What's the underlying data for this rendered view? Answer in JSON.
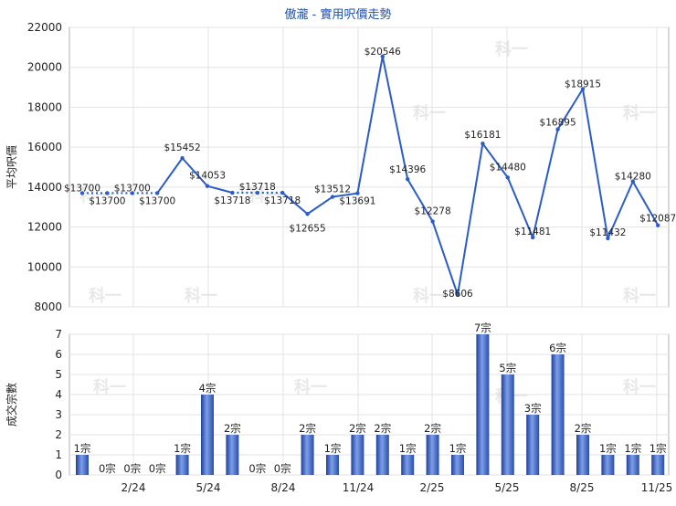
{
  "chart_data": [
    {
      "type": "line",
      "title": "傲瀧 - 實用呎價走勢",
      "ylabel": "平均呎價",
      "ylim": [
        8000,
        22000
      ],
      "yticks": [
        8000,
        10000,
        12000,
        14000,
        16000,
        18000,
        20000,
        22000
      ],
      "line_color": "#2b5cc8",
      "points": [
        {
          "value": 13700,
          "label": "$13700",
          "estimated": true
        },
        {
          "value": 13700,
          "label": "$13700",
          "estimated": true
        },
        {
          "value": 13700,
          "label": "$13700",
          "estimated": true
        },
        {
          "value": 13700,
          "label": "$13700",
          "estimated": false
        },
        {
          "value": 15452,
          "label": "$15452",
          "estimated": false
        },
        {
          "value": 14053,
          "label": "$14053",
          "estimated": false
        },
        {
          "value": 13718,
          "label": "$13718",
          "estimated": true
        },
        {
          "value": 13718,
          "label": "$13718",
          "estimated": true
        },
        {
          "value": 13718,
          "label": "$13718",
          "estimated": false
        },
        {
          "value": 12655,
          "label": "$12655",
          "estimated": false
        },
        {
          "value": 13512,
          "label": "$13512",
          "estimated": false
        },
        {
          "value": 13691,
          "label": "$13691",
          "estimated": false
        },
        {
          "value": 20546,
          "label": "$20546",
          "estimated": false
        },
        {
          "value": 14396,
          "label": "$14396",
          "estimated": false
        },
        {
          "value": 12278,
          "label": "$12278",
          "estimated": false
        },
        {
          "value": 8606,
          "label": "$8606",
          "estimated": false
        },
        {
          "value": 16181,
          "label": "$16181",
          "estimated": false
        },
        {
          "value": 14480,
          "label": "$14480",
          "estimated": false
        },
        {
          "value": 11481,
          "label": "$11481",
          "estimated": false
        },
        {
          "value": 16895,
          "label": "$16895",
          "estimated": false
        },
        {
          "value": 18915,
          "label": "$18915",
          "estimated": false
        },
        {
          "value": 11432,
          "label": "$11432",
          "estimated": false
        },
        {
          "value": 14280,
          "label": "$14280",
          "estimated": false
        },
        {
          "value": 12087,
          "label": "$12087",
          "estimated": false
        }
      ]
    },
    {
      "type": "bar",
      "ylabel": "成交宗數",
      "ylim": [
        0,
        7
      ],
      "yticks": [
        0,
        1,
        2,
        3,
        4,
        5,
        6,
        7
      ],
      "bar_color": "#3a63c4",
      "values": [
        1,
        0,
        0,
        0,
        1,
        4,
        2,
        0,
        0,
        2,
        1,
        2,
        2,
        1,
        2,
        1,
        7,
        5,
        3,
        6,
        2,
        1,
        1,
        1
      ],
      "labels": [
        "1宗",
        "0宗",
        "0宗",
        "0宗",
        "1宗",
        "4宗",
        "2宗",
        "0宗",
        "0宗",
        "2宗",
        "1宗",
        "2宗",
        "2宗",
        "1宗",
        "2宗",
        "1宗",
        "7宗",
        "5宗",
        "3宗",
        "6宗",
        "2宗",
        "1宗",
        "1宗",
        "1宗"
      ],
      "x_tick_labels": [
        "2/24",
        "5/24",
        "8/24",
        "11/24",
        "2/25",
        "5/25",
        "8/25",
        "11/25"
      ]
    }
  ]
}
